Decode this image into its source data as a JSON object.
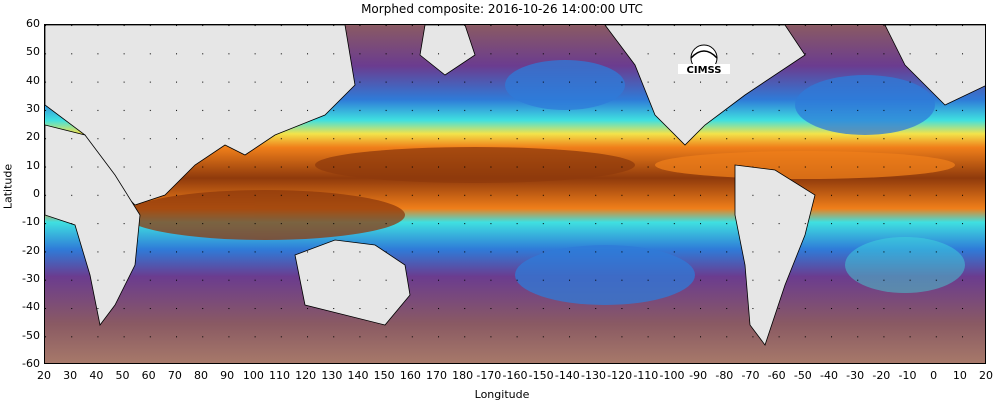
{
  "title": "Morphed composite: 2016-10-26 14:00:00 UTC",
  "axes": {
    "ylabel": "Latitude",
    "xlabel": "Longitude",
    "y_ticks": [
      "60",
      "50",
      "40",
      "30",
      "20",
      "10",
      "0",
      "-10",
      "-20",
      "-30",
      "-40",
      "-50",
      "-60"
    ],
    "x_ticks": [
      "20",
      "30",
      "40",
      "50",
      "60",
      "70",
      "80",
      "90",
      "100",
      "110",
      "120",
      "130",
      "140",
      "150",
      "160",
      "170",
      "180",
      "-170",
      "-160",
      "-150",
      "-140",
      "-130",
      "-120",
      "-110",
      "-100",
      "-90",
      "-80",
      "-70",
      "-60",
      "-50",
      "-40",
      "-30",
      "-20",
      "-10",
      "0",
      "10",
      "20"
    ]
  },
  "logo": {
    "text": "CIMSS"
  },
  "colors": {
    "land": "#e6e6e6",
    "ocean_dry": "#8a5a63",
    "ocean_purple": "#6b3c8f",
    "moisture_blue": "#2f7bd8",
    "moisture_cyan": "#3fe0e0",
    "moisture_green": "#7fe07f",
    "moisture_yellow": "#f3e34a",
    "moisture_orange": "#f07f1a",
    "moisture_brown": "#8f3a0c"
  }
}
